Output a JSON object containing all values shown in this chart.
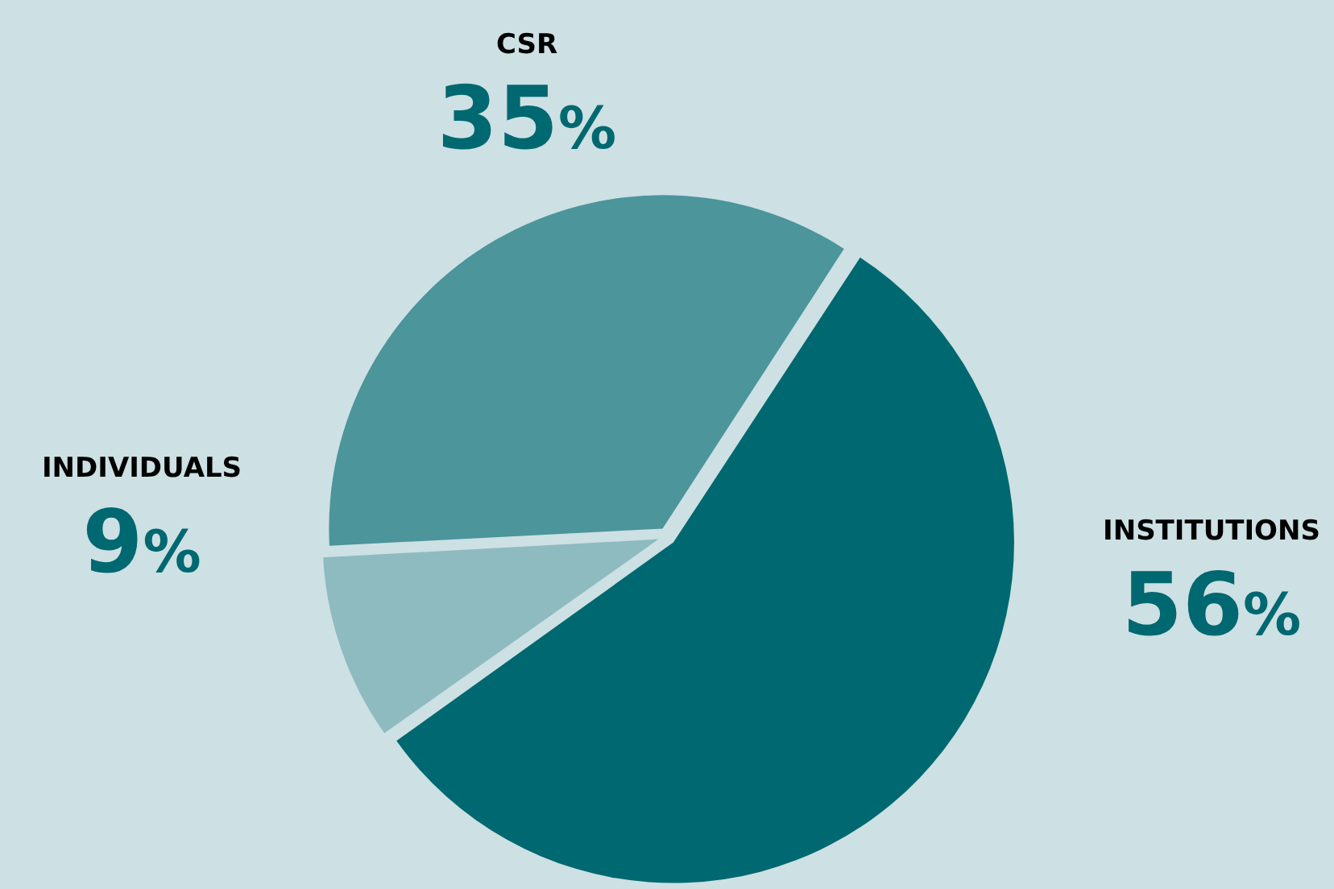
{
  "chart_data": {
    "type": "pie",
    "categories": [
      "CSR",
      "INSTITUTIONS",
      "INDIVIDUALS"
    ],
    "values": [
      35,
      56,
      9
    ],
    "colors": [
      "#4b959b",
      "#006870",
      "#8ebbc0"
    ],
    "value_labels": [
      "35%",
      "56%",
      "9%"
    ],
    "legend": false
  }
}
